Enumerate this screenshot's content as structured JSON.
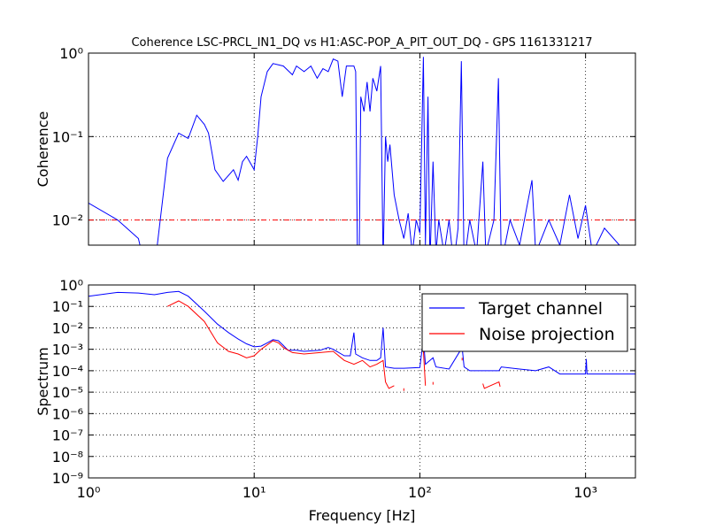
{
  "chart_data": [
    {
      "type": "line",
      "title": "Coherence LSC-PRCL_IN1_DQ vs H1:ASC-POP_A_PIT_OUT_DQ - GPS 1161331217",
      "ylabel": "Coherence",
      "xscale": "log",
      "yscale": "log",
      "grid": true,
      "xlim": [
        1,
        2000
      ],
      "ylim": [
        0.005,
        1
      ],
      "xticks": [
        1,
        10,
        100,
        1000
      ],
      "yticks": [
        {
          "value": 0.01,
          "label": "10⁻²"
        },
        {
          "value": 0.1,
          "label": "10⁻¹"
        },
        {
          "value": 1,
          "label": "10⁰"
        }
      ],
      "threshold": 0.01,
      "threshold_color": "#ff0000",
      "series": [
        {
          "name": "Coherence",
          "color": "#0000ff",
          "x": [
            1,
            1.5,
            2,
            2.1,
            2.6,
            3,
            3.5,
            4,
            4.5,
            5,
            5.3,
            5.8,
            6.5,
            7.5,
            8,
            8.5,
            9,
            10,
            10.5,
            11,
            12,
            13,
            15,
            17,
            18,
            20,
            22,
            24,
            26,
            28,
            30,
            32,
            34,
            36,
            38,
            40,
            41,
            42,
            43,
            44,
            46,
            48,
            50,
            52,
            55,
            58,
            60,
            62,
            64,
            66,
            70,
            75,
            80,
            85,
            90,
            95,
            100,
            105,
            108,
            112,
            115,
            120,
            125,
            130,
            140,
            150,
            160,
            170,
            178,
            185,
            200,
            220,
            240,
            250,
            280,
            298,
            310,
            350,
            400,
            475,
            500,
            600,
            700,
            800,
            900,
            1000,
            1100,
            1300,
            1600,
            2000
          ],
          "values": [
            0.016,
            0.01,
            0.006,
            0.004,
            0.005,
            0.055,
            0.11,
            0.095,
            0.18,
            0.14,
            0.11,
            0.04,
            0.029,
            0.04,
            0.03,
            0.05,
            0.058,
            0.04,
            0.1,
            0.3,
            0.6,
            0.75,
            0.7,
            0.55,
            0.7,
            0.6,
            0.7,
            0.5,
            0.65,
            0.6,
            0.85,
            0.8,
            0.3,
            0.7,
            0.7,
            0.7,
            0.6,
            0.003,
            0.003,
            0.3,
            0.2,
            0.45,
            0.2,
            0.5,
            0.35,
            0.7,
            0.003,
            0.1,
            0.05,
            0.08,
            0.02,
            0.01,
            0.006,
            0.012,
            0.004,
            0.01,
            0.007,
            0.9,
            0.005,
            0.3,
            0.003,
            0.05,
            0.004,
            0.01,
            0.004,
            0.01,
            0.003,
            0.008,
            0.8,
            0.003,
            0.01,
            0.004,
            0.05,
            0.004,
            0.01,
            0.5,
            0.003,
            0.01,
            0.005,
            0.03,
            0.004,
            0.01,
            0.005,
            0.02,
            0.006,
            0.015,
            0.004,
            0.008,
            0.005,
            0.004
          ]
        }
      ]
    },
    {
      "type": "line",
      "ylabel": "Spectrum",
      "xlabel": "Frequency [Hz]",
      "xscale": "log",
      "yscale": "log",
      "grid": true,
      "xlim": [
        1,
        2000
      ],
      "ylim": [
        1e-09,
        1
      ],
      "legend": "upper right",
      "xticks": [
        {
          "value": 1,
          "label": "10⁰"
        },
        {
          "value": 10,
          "label": "10¹"
        },
        {
          "value": 100,
          "label": "10²"
        },
        {
          "value": 1000,
          "label": "10³"
        }
      ],
      "yticks": [
        {
          "value": 1e-09,
          "label": "10⁻⁹"
        },
        {
          "value": 1e-08,
          "label": "10⁻⁸"
        },
        {
          "value": 1e-07,
          "label": "10⁻⁷"
        },
        {
          "value": 1e-06,
          "label": "10⁻⁶"
        },
        {
          "value": 1e-05,
          "label": "10⁻⁵"
        },
        {
          "value": 0.0001,
          "label": "10⁻⁴"
        },
        {
          "value": 0.001,
          "label": "10⁻³"
        },
        {
          "value": 0.01,
          "label": "10⁻²"
        },
        {
          "value": 0.1,
          "label": "10⁻¹"
        },
        {
          "value": 1,
          "label": "10⁰"
        }
      ],
      "series": [
        {
          "name": "Target channel",
          "color": "#0000ff",
          "x": [
            1,
            1.5,
            2,
            2.5,
            3,
            3.5,
            4,
            5,
            6,
            7,
            8,
            9,
            10,
            11,
            12,
            13,
            14,
            15,
            16,
            18,
            20,
            25,
            28,
            30,
            35,
            38,
            40,
            41,
            45,
            50,
            55,
            58,
            60,
            62,
            70,
            80,
            100,
            105,
            108,
            120,
            125,
            150,
            180,
            185,
            200,
            300,
            310,
            400,
            500,
            600,
            700,
            1000,
            1010,
            1020,
            2000
          ],
          "values": [
            0.3,
            0.45,
            0.42,
            0.35,
            0.45,
            0.5,
            0.3,
            0.06,
            0.015,
            0.006,
            0.003,
            0.0018,
            0.0013,
            0.0014,
            0.002,
            0.0028,
            0.0025,
            0.0015,
            0.0009,
            0.0009,
            0.0008,
            0.0009,
            0.0012,
            0.001,
            0.0005,
            0.0005,
            0.006,
            0.0006,
            0.0004,
            0.0003,
            0.0003,
            0.0004,
            0.01,
            0.00015,
            0.00013,
            0.00013,
            0.00014,
            0.003,
            0.0002,
            0.0004,
            0.00015,
            0.00012,
            0.0012,
            0.00015,
            0.0001,
            0.0001,
            0.00015,
            0.00012,
            0.0001,
            0.00015,
            7e-05,
            7e-05,
            0.00035,
            7e-05,
            7e-05
          ]
        },
        {
          "name": "Noise projection",
          "color": "#ff0000",
          "x": [
            3,
            3.5,
            4,
            5,
            6,
            7,
            8,
            9,
            10,
            11,
            13,
            14,
            15,
            17,
            20,
            25,
            30,
            35,
            40,
            45,
            50,
            55,
            60,
            62,
            65,
            70,
            75,
            80,
            90,
            105,
            108,
            110,
            120,
            125,
            180,
            185,
            240,
            245,
            300,
            305
          ],
          "values": [
            0.1,
            0.18,
            0.1,
            0.02,
            0.002,
            0.0008,
            0.0006,
            0.0004,
            0.0005,
            0.001,
            0.0025,
            0.002,
            0.0012,
            0.0007,
            0.0006,
            0.0007,
            0.0008,
            0.0003,
            0.0002,
            0.0003,
            0.00015,
            0.0002,
            0.0003,
            3e-05,
            1.5e-05,
            2e-05,
            null,
            1.5e-05,
            null,
            0.0009,
            2e-05,
            null,
            3e-05,
            null,
            0.0004,
            null,
            2.5e-05,
            1.5e-05,
            3e-05,
            1.8e-05
          ]
        }
      ]
    }
  ]
}
